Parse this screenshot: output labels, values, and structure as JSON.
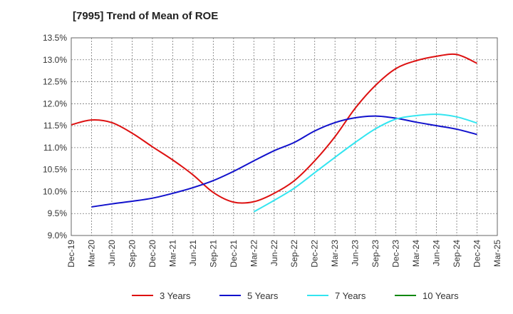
{
  "chart_data": {
    "type": "line",
    "title": "[7995]  Trend of Mean of ROE",
    "xlabel": "",
    "ylabel": "",
    "x_ticks": [
      "Dec-19",
      "Mar-20",
      "Jun-20",
      "Sep-20",
      "Dec-20",
      "Mar-21",
      "Jun-21",
      "Sep-21",
      "Dec-21",
      "Mar-22",
      "Jun-22",
      "Sep-22",
      "Dec-22",
      "Mar-23",
      "Jun-23",
      "Sep-23",
      "Dec-23",
      "Mar-24",
      "Jun-24",
      "Sep-24",
      "Dec-24",
      "Mar-25"
    ],
    "y_ticks": [
      "9.0%",
      "9.5%",
      "10.0%",
      "10.5%",
      "11.0%",
      "11.5%",
      "12.0%",
      "12.5%",
      "13.0%",
      "13.5%"
    ],
    "ylim": [
      9.0,
      13.5
    ],
    "grid": true,
    "legend_position": "bottom",
    "series": [
      {
        "name": "3 Years",
        "color": "#dd1111",
        "points": [
          [
            0,
            11.52
          ],
          [
            1,
            11.63
          ],
          [
            2,
            11.57
          ],
          [
            3,
            11.33
          ],
          [
            4,
            11.02
          ],
          [
            5,
            10.72
          ],
          [
            6,
            10.38
          ],
          [
            7,
            9.98
          ],
          [
            8,
            9.76
          ],
          [
            9,
            9.77
          ],
          [
            10,
            9.96
          ],
          [
            11,
            10.25
          ],
          [
            12,
            10.7
          ],
          [
            13,
            11.25
          ],
          [
            14,
            11.9
          ],
          [
            15,
            12.42
          ],
          [
            16,
            12.8
          ],
          [
            17,
            12.98
          ],
          [
            18,
            13.08
          ],
          [
            19,
            13.12
          ],
          [
            20,
            12.92
          ]
        ]
      },
      {
        "name": "5 Years",
        "color": "#1111cc",
        "points": [
          [
            1,
            9.65
          ],
          [
            2,
            9.72
          ],
          [
            3,
            9.78
          ],
          [
            4,
            9.85
          ],
          [
            5,
            9.96
          ],
          [
            6,
            10.09
          ],
          [
            7,
            10.25
          ],
          [
            8,
            10.46
          ],
          [
            9,
            10.7
          ],
          [
            10,
            10.93
          ],
          [
            11,
            11.12
          ],
          [
            12,
            11.38
          ],
          [
            13,
            11.57
          ],
          [
            14,
            11.68
          ],
          [
            15,
            11.72
          ],
          [
            16,
            11.67
          ],
          [
            17,
            11.58
          ],
          [
            18,
            11.5
          ],
          [
            19,
            11.42
          ],
          [
            20,
            11.3
          ]
        ]
      },
      {
        "name": "7 Years",
        "color": "#33e5f0",
        "points": [
          [
            9,
            9.54
          ],
          [
            10,
            9.8
          ],
          [
            11,
            10.08
          ],
          [
            12,
            10.43
          ],
          [
            13,
            10.78
          ],
          [
            14,
            11.12
          ],
          [
            15,
            11.43
          ],
          [
            16,
            11.65
          ],
          [
            17,
            11.73
          ],
          [
            18,
            11.76
          ],
          [
            19,
            11.7
          ],
          [
            20,
            11.56
          ]
        ]
      },
      {
        "name": "10 Years",
        "color": "#118811",
        "points": []
      }
    ]
  }
}
